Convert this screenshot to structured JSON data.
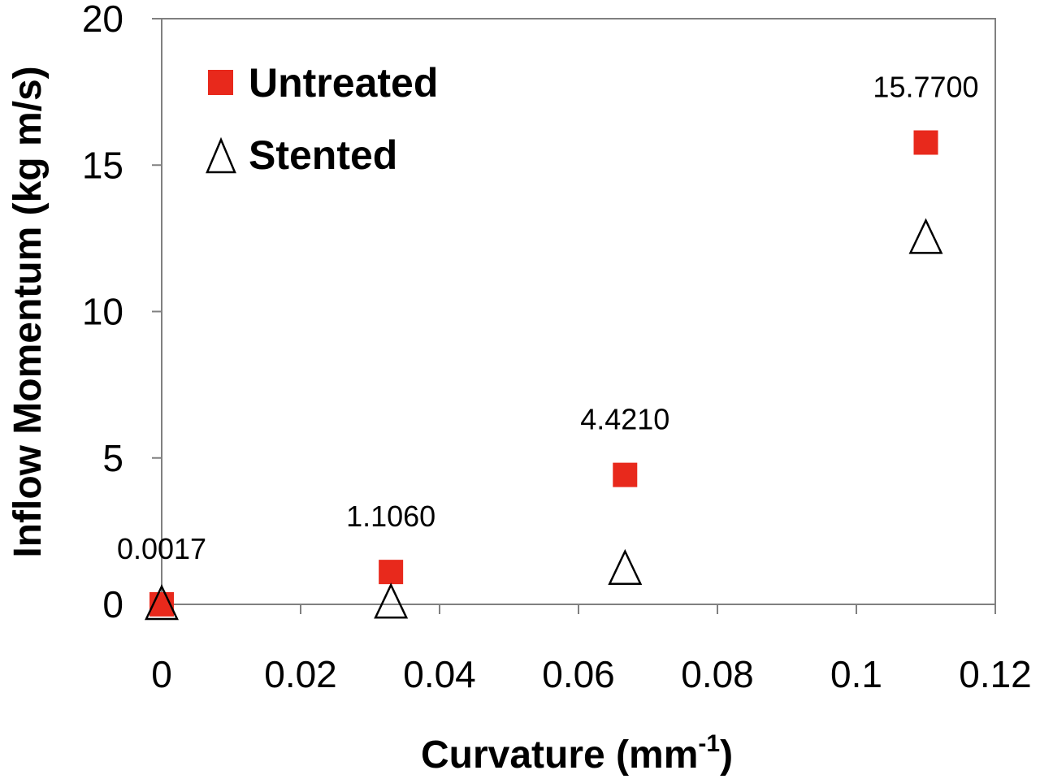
{
  "chart_data": {
    "type": "scatter",
    "xlabel": "Curvature (mm",
    "xlabel_sup": "-1",
    "xlabel_close": ")",
    "ylabel": "Inflow Momentum (kg m/s)",
    "xlim": [
      0,
      0.12
    ],
    "ylim": [
      0,
      20
    ],
    "x_ticks": [
      {
        "value": 0,
        "label": "0"
      },
      {
        "value": 0.02,
        "label": "0.02"
      },
      {
        "value": 0.04,
        "label": "0.04"
      },
      {
        "value": 0.06,
        "label": "0.06"
      },
      {
        "value": 0.08,
        "label": "0.08"
      },
      {
        "value": 0.1,
        "label": "0.1"
      },
      {
        "value": 0.12,
        "label": "0.12"
      }
    ],
    "y_ticks": [
      {
        "value": 0,
        "label": "0"
      },
      {
        "value": 5,
        "label": "5"
      },
      {
        "value": 10,
        "label": "10"
      },
      {
        "value": 15,
        "label": "15"
      },
      {
        "value": 20,
        "label": "20"
      }
    ],
    "grid": false,
    "legend_position": "top-left",
    "series": [
      {
        "name": "Untreated",
        "marker": "square",
        "color": "#e8291c",
        "points": [
          {
            "x": 0,
            "y": 0.0017,
            "label": "0.0017"
          },
          {
            "x": 0.033,
            "y": 1.106,
            "label": "1.1060"
          },
          {
            "x": 0.0667,
            "y": 4.421,
            "label": "4.4210"
          },
          {
            "x": 0.11,
            "y": 15.77,
            "label": "15.7700"
          }
        ]
      },
      {
        "name": "Stented",
        "marker": "triangle-open",
        "color": "#000000",
        "points": [
          {
            "x": 0,
            "y": 0
          },
          {
            "x": 0.033,
            "y": 0.05
          },
          {
            "x": 0.0667,
            "y": 1.2
          },
          {
            "x": 0.11,
            "y": 12.5
          }
        ]
      }
    ]
  }
}
